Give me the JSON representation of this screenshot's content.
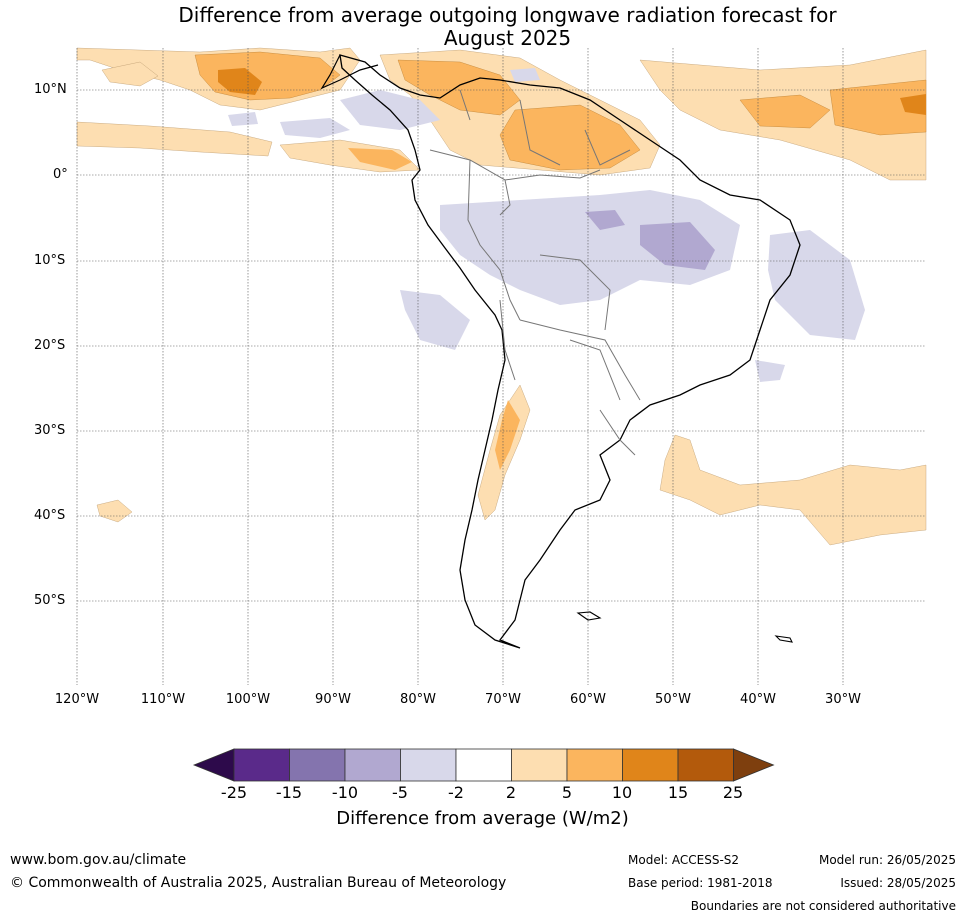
{
  "title": "Difference from average outgoing longwave radiation forecast for\nAugust 2025",
  "latitude_labels": [
    "10°N",
    "0°",
    "10°S",
    "20°S",
    "30°S",
    "40°S",
    "50°S"
  ],
  "longitude_labels": [
    "120°W",
    "110°W",
    "100°W",
    "90°W",
    "80°W",
    "70°W",
    "60°W",
    "50°W",
    "40°W",
    "30°W"
  ],
  "colorbar": {
    "ticks": [
      "-25",
      "-15",
      "-10",
      "-5",
      "-2",
      "2",
      "5",
      "10",
      "15",
      "25"
    ],
    "colors": [
      "#2d0a4b",
      "#5a2a8a",
      "#8474ae",
      "#b1a8d0",
      "#d8d8ea",
      "#ffffff",
      "#fddeb1",
      "#fbb55e",
      "#e0851a",
      "#b35a0c",
      "#7e3f0e"
    ],
    "label": "Difference from average (W/m2)"
  },
  "footer": {
    "url": "www.bom.gov.au/climate",
    "copyright": "© Commonwealth of Australia 2025, Australian Bureau of Meteorology",
    "model": "Model: ACCESS-S2",
    "base_period": "Base period: 1981-2018",
    "model_run": "Model run: 26/05/2025",
    "issued": "Issued: 28/05/2025",
    "disclaimer": "Boundaries are not considered authoritative"
  }
}
